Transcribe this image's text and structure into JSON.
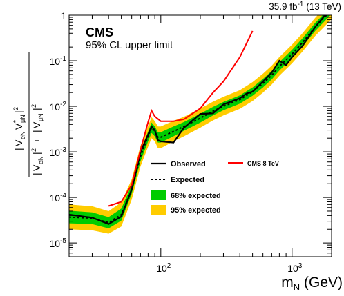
{
  "chart_data": {
    "type": "line",
    "header_right": {
      "lumi_prefix": "35.9 fb",
      "lumi_sup": "-1",
      "lumi_suffix": " (13 TeV)"
    },
    "experiment": "CMS",
    "subtitle": "95% CL upper limit",
    "xlabel": {
      "main": "m",
      "sub": "N",
      "unit": " (GeV)"
    },
    "ylabel": {
      "V_top": "V",
      "eN_sub": "eN",
      "mu_top": "V",
      "muN_sub": "μN",
      "star": "*",
      "exp2": "2",
      "plus": "+"
    },
    "x_scale": "log",
    "y_scale": "log",
    "xlim": [
      20,
      2000
    ],
    "ylim": [
      5e-06,
      1
    ],
    "x_ticks": [
      {
        "value": 100,
        "base": "10",
        "exp": "2"
      },
      {
        "value": 1000,
        "base": "10",
        "exp": "3"
      }
    ],
    "y_ticks": [
      {
        "value": 1e-05,
        "base": "10",
        "exp": "-5"
      },
      {
        "value": 0.0001,
        "base": "10",
        "exp": "-4"
      },
      {
        "value": 0.001,
        "base": "10",
        "exp": "-3"
      },
      {
        "value": 0.01,
        "base": "10",
        "exp": "-2"
      },
      {
        "value": 0.1,
        "base": "10",
        "exp": "-1"
      },
      {
        "value": 1,
        "base": "1",
        "exp": ""
      }
    ],
    "legend_position": "center-right",
    "legend": [
      {
        "label": "Observed",
        "style": "solid-black"
      },
      {
        "label": "Expected",
        "style": "dashed-black"
      },
      {
        "label": "68% expected",
        "style": "box-green"
      },
      {
        "label": "95% expected",
        "style": "box-yellow"
      },
      {
        "label": "CMS 8 TeV",
        "style": "solid-red"
      }
    ],
    "colors": {
      "band_68": "#00cc00",
      "band_95": "#ffcc00",
      "observed": "#000000",
      "cms8": "#ff0000"
    },
    "bands": {
      "x": [
        20,
        30,
        40,
        50,
        60,
        70,
        80,
        85,
        90,
        95,
        100,
        125,
        150,
        200,
        250,
        300,
        400,
        500,
        600,
        700,
        800,
        1000,
        1200,
        1500,
        2000
      ],
      "expected": [
        3.7e-05,
        3.5e-05,
        2.8e-05,
        4.2e-05,
        0.00015,
        0.0008,
        0.0022,
        0.0034,
        0.0028,
        0.0021,
        0.0021,
        0.0028,
        0.0036,
        0.0055,
        0.0078,
        0.01,
        0.014,
        0.021,
        0.032,
        0.048,
        0.075,
        0.14,
        0.25,
        0.55,
        1.3
      ],
      "sigma68": [
        2.7e-05,
        2.6e-05,
        2.1e-05,
        3.1e-05,
        0.00012,
        0.00062,
        0.0017,
        0.0026,
        0.0022,
        0.0016,
        0.0016,
        0.0022,
        0.0029,
        0.0044,
        0.0063,
        0.0082,
        0.0114,
        0.017,
        0.026,
        0.039,
        0.061,
        0.114,
        0.204,
        0.45,
        1.06,
        5.1e-05,
        4.7e-05,
        3.7e-05,
        5.7e-05,
        0.00019,
        0.00103,
        0.0028,
        0.0044,
        0.0036,
        0.0027,
        0.0027,
        0.0036,
        0.0045,
        0.0069,
        0.0097,
        0.0125,
        0.0174,
        0.026,
        0.04,
        0.06,
        0.093,
        0.174,
        0.31,
        0.68,
        1.6
      ],
      "sigma95": [
        2e-05,
        1.9e-05,
        1.6e-05,
        2.3e-05,
        9e-05,
        0.00048,
        0.0013,
        0.002,
        0.0017,
        0.0012,
        0.0012,
        0.0017,
        0.0022,
        0.0034,
        0.0049,
        0.0063,
        0.0088,
        0.013,
        0.02,
        0.03,
        0.047,
        0.088,
        0.158,
        0.35,
        0.82,
        7e-05,
        6.4e-05,
        5e-05,
        7.8e-05,
        0.00025,
        0.00136,
        0.0037,
        0.0058,
        0.0047,
        0.0036,
        0.0036,
        0.0048,
        0.0059,
        0.009,
        0.0126,
        0.0162,
        0.0226,
        0.034,
        0.052,
        0.078,
        0.121,
        0.226,
        0.4,
        0.88,
        2.1
      ]
    },
    "series": [
      {
        "name": "Observed",
        "x": [
          20,
          30,
          40,
          50,
          60,
          70,
          80,
          85,
          90,
          95,
          100,
          125,
          150,
          200,
          250,
          300,
          400,
          450,
          500,
          600,
          700,
          800,
          900,
          1000,
          1200,
          1500,
          2000
        ],
        "y": [
          4.2e-05,
          3.6e-05,
          2.6e-05,
          3.8e-05,
          0.00015,
          0.001,
          0.0024,
          0.0036,
          0.003,
          0.0018,
          0.0017,
          0.0016,
          0.0034,
          0.0068,
          0.007,
          0.011,
          0.015,
          0.019,
          0.021,
          0.035,
          0.055,
          0.1,
          0.08,
          0.12,
          0.21,
          0.55,
          1.5
        ]
      },
      {
        "name": "CMS 8 TeV",
        "x": [
          40,
          50,
          60,
          70,
          80,
          85,
          90,
          100,
          125,
          150,
          200,
          250,
          300,
          400,
          500
        ],
        "y": [
          6.5e-05,
          8e-05,
          0.00019,
          0.0011,
          0.0045,
          0.008,
          0.006,
          0.0047,
          0.0047,
          0.0052,
          0.009,
          0.02,
          0.035,
          0.12,
          0.45
        ]
      }
    ]
  }
}
